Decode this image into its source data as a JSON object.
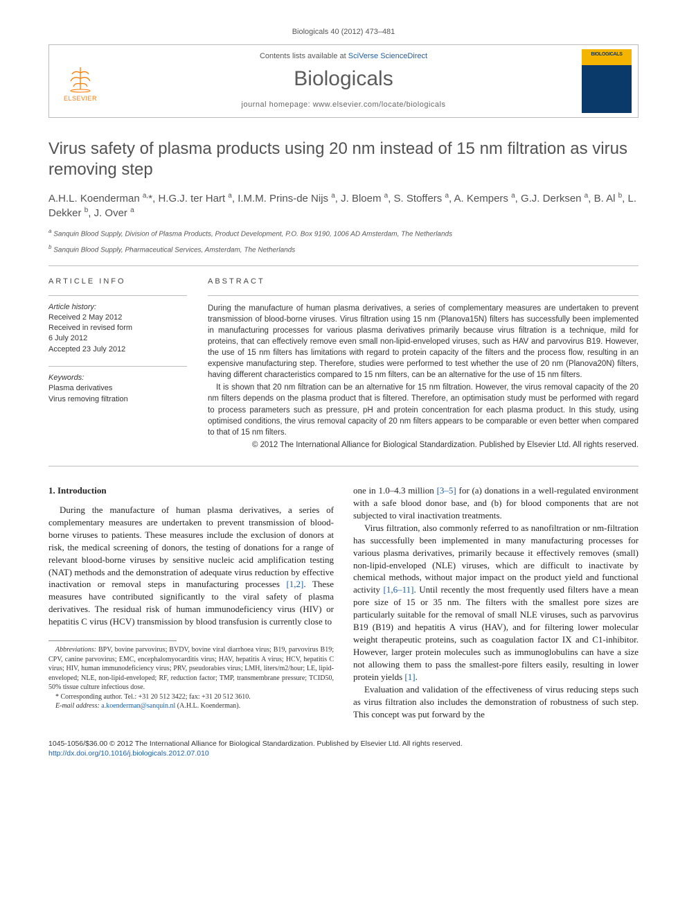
{
  "running_head": "Biologicals 40 (2012) 473–481",
  "masthead": {
    "publisher_name": "ELSEVIER",
    "contents_prefix": "Contents lists available at ",
    "contents_link": "SciVerse ScienceDirect",
    "journal_name": "Biologicals",
    "homepage_prefix": "journal homepage: ",
    "homepage_url": "www.elsevier.com/locate/biologicals",
    "cover_title": "BIOLOGICALS"
  },
  "title": "Virus safety of plasma products using 20 nm instead of 15 nm filtration as virus removing step",
  "authors_html": "A.H.L. Koenderman <sup>a,</sup>*, H.G.J. ter Hart <sup>a</sup>, I.M.M. Prins-de Nijs <sup>a</sup>, J. Bloem <sup>a</sup>, S. Stoffers <sup>a</sup>, A. Kempers <sup>a</sup>, G.J. Derksen <sup>a</sup>, B. Al <sup>b</sup>, L. Dekker <sup>b</sup>, J. Over <sup>a</sup>",
  "affiliations": {
    "a": "Sanquin Blood Supply, Division of Plasma Products, Product Development, P.O. Box 9190, 1006 AD Amsterdam, The Netherlands",
    "b": "Sanquin Blood Supply, Pharmaceutical Services, Amsterdam, The Netherlands"
  },
  "info": {
    "article_info_label": "ARTICLE INFO",
    "abstract_label": "ABSTRACT",
    "history_label": "Article history:",
    "history": {
      "received": "Received 2 May 2012",
      "revised_1": "Received in revised form",
      "revised_2": "6 July 2012",
      "accepted": "Accepted 23 July 2012"
    },
    "keywords_label": "Keywords:",
    "keywords": {
      "k1": "Plasma derivatives",
      "k2": "Virus removing filtration"
    }
  },
  "abstract": {
    "p1": "During the manufacture of human plasma derivatives, a series of complementary measures are undertaken to prevent transmission of blood-borne viruses. Virus filtration using 15 nm (Planova15N) filters has successfully been implemented in manufacturing processes for various plasma derivatives primarily because virus filtration is a technique, mild for proteins, that can effectively remove even small non-lipid-enveloped viruses, such as HAV and parvovirus B19. However, the use of 15 nm filters has limitations with regard to protein capacity of the filters and the process flow, resulting in an expensive manufacturing step. Therefore, studies were performed to test whether the use of 20 nm (Planova20N) filters, having different characteristics compared to 15 nm filters, can be an alternative for the use of 15 nm filters.",
    "p2": "It is shown that 20 nm filtration can be an alternative for 15 nm filtration. However, the virus removal capacity of the 20 nm filters depends on the plasma product that is filtered. Therefore, an optimisation study must be performed with regard to process parameters such as pressure, pH and protein concentration for each plasma product. In this study, using optimised conditions, the virus removal capacity of 20 nm filters appears to be comparable or even better when compared to that of 15 nm filters.",
    "copyright": "© 2012 The International Alliance for Biological Standardization. Published by Elsevier Ltd. All rights reserved."
  },
  "body": {
    "heading1": "1. Introduction",
    "col1_p1": "During the manufacture of human plasma derivatives, a series of complementary measures are undertaken to prevent transmission of blood-borne viruses to patients. These measures include the exclusion of donors at risk, the medical screening of donors, the testing of donations for a range of relevant blood-borne viruses by sensitive nucleic acid amplification testing (NAT) methods and the demonstration of adequate virus reduction by effective inactivation or removal steps in manufacturing processes [1,2]. These measures have contributed significantly to the viral safety of plasma derivatives. The residual risk of human immunodeficiency virus (HIV) or hepatitis C virus (HCV) transmission by blood transfusion is currently close to",
    "col2_p1": "one in 1.0–4.3 million [3–5] for (a) donations in a well-regulated environment with a safe blood donor base, and (b) for blood components that are not subjected to viral inactivation treatments.",
    "col2_p2": "Virus filtration, also commonly referred to as nanofiltration or nm-filtration has successfully been implemented in many manufacturing processes for various plasma derivatives, primarily because it effectively removes (small) non-lipid-enveloped (NLE) viruses, which are difficult to inactivate by chemical methods, without major impact on the product yield and functional activity [1,6–11]. Until recently the most frequently used filters have a mean pore size of 15 or 35 nm. The filters with the smallest pore sizes are particularly suitable for the removal of small NLE viruses, such as parvovirus B19 (B19) and hepatitis A virus (HAV), and for filtering lower molecular weight therapeutic proteins, such as coagulation factor IX and C1-inhibitor. However, larger protein molecules such as immunoglobulins can have a size not allowing them to pass the smallest-pore filters easily, resulting in lower protein yields [1].",
    "col2_p3": "Evaluation and validation of the effectiveness of virus reducing steps such as virus filtration also includes the demonstration of robustness of such step. This concept was put forward by the"
  },
  "footnotes": {
    "abbrev_label": "Abbreviations:",
    "abbrev_text": " BPV, bovine parvovirus; BVDV, bovine viral diarrhoea virus; B19, parvovirus B19; CPV, canine parvovirus; EMC, encephalomyocarditis virus; HAV, hepatitis A virus; HCV, hepatitis C virus; HIV, human immunodeficiency virus; PRV, pseudorabies virus; LMH, liters/m2/hour; LE, lipid-enveloped; NLE, non-lipid-enveloped; RF, reduction factor; TMP, transmembrane pressure; TCID50, 50% tissue culture infectious dose.",
    "corr_label": "* Corresponding author.",
    "corr_text": " Tel.: +31 20 512 3422; fax: +31 20 512 3610.",
    "email_label": "E-mail address:",
    "email": "a.koenderman@sanquin.nl",
    "email_who": " (A.H.L. Koenderman)."
  },
  "footer": {
    "issn_line": "1045-1056/$36.00 © 2012 The International Alliance for Biological Standardization. Published by Elsevier Ltd. All rights reserved.",
    "doi": "http://dx.doi.org/10.1016/j.biologicals.2012.07.010"
  },
  "refs": {
    "r12": "[1,2]",
    "r35": "[3–5]",
    "r1611": "[1,6–11]",
    "r1": "[1]"
  }
}
